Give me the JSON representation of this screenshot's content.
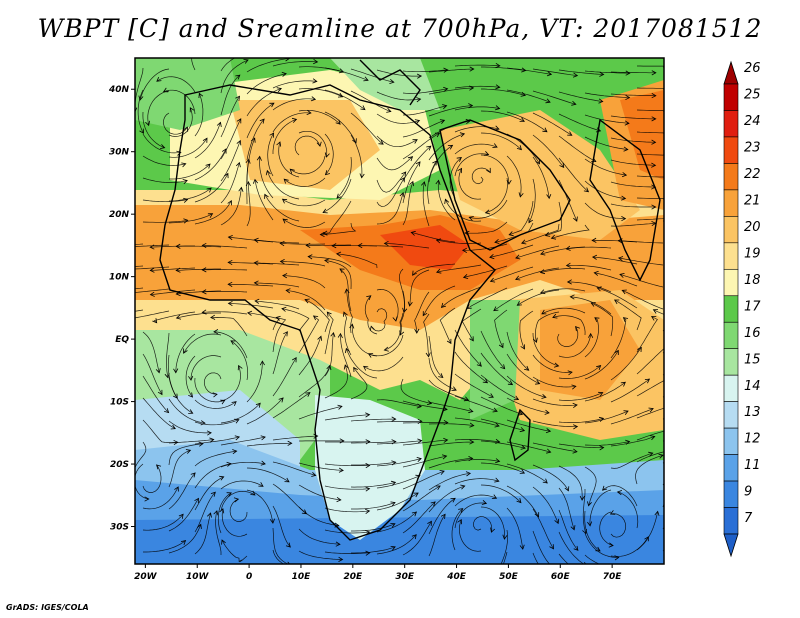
{
  "title": "WBPT [C] and Sreamline at 700hPa, VT: 2017081512",
  "credit": "GrADS: IGES/COLA",
  "map": {
    "lon_ticks": [
      "20W",
      "10W",
      "0",
      "10E",
      "20E",
      "30E",
      "40E",
      "50E",
      "60E",
      "70E"
    ],
    "lat_ticks": [
      "40N",
      "30N",
      "20N",
      "10N",
      "EQ",
      "10S",
      "20S",
      "30S"
    ],
    "lon_range": [
      -22,
      80
    ],
    "lat_range": [
      -36,
      45
    ]
  },
  "colorbar": {
    "levels": [
      "26",
      "25",
      "24",
      "23",
      "22",
      "21",
      "20",
      "19",
      "18",
      "17",
      "16",
      "15",
      "14",
      "13",
      "12",
      "11",
      "9",
      "7"
    ],
    "colors": [
      "#c00000",
      "#e01e10",
      "#f04a10",
      "#f47a1a",
      "#f8a23a",
      "#fbc463",
      "#fde08f",
      "#fdf6b2",
      "#5cc94a",
      "#7fd872",
      "#a8e6a0",
      "#d8f4f0",
      "#b6dcf2",
      "#8cc4ee",
      "#5aa2e8",
      "#3a86e0",
      "#2a6fd6"
    ],
    "top_arrow_color": "#9e0000",
    "bottom_arrow_color": "#1e5fc8"
  },
  "colors": {
    "cool_blue": "#4a90e2",
    "green": "#5cc94a",
    "yellow": "#fde08f",
    "orange": "#f8a23a",
    "red": "#e8501a"
  }
}
